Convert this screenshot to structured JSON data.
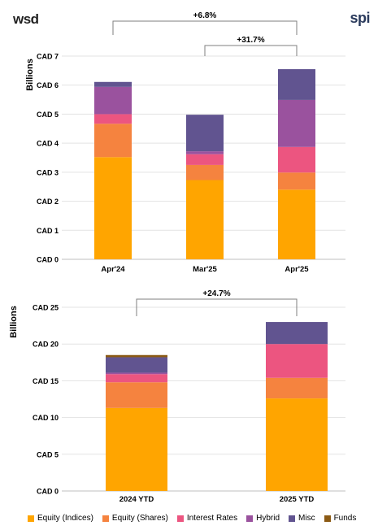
{
  "logos": {
    "left": "wsd",
    "right": "spi"
  },
  "chart_data": [
    {
      "type": "bar",
      "stacked": true,
      "ylabel": "Billions",
      "categories": [
        "Apr'24",
        "Mar'25",
        "Apr'25"
      ],
      "ylim": [
        0,
        7
      ],
      "ytick_labels": [
        "CAD 0",
        "CAD 1",
        "CAD 2",
        "CAD 3",
        "CAD 4",
        "CAD 5",
        "CAD 6",
        "CAD 7"
      ],
      "series": [
        {
          "name": "Equity (Indices)",
          "values": [
            3.52,
            2.73,
            2.4
          ]
        },
        {
          "name": "Equity (Shares)",
          "values": [
            1.15,
            0.52,
            0.59
          ]
        },
        {
          "name": "Interest Rates",
          "values": [
            0.33,
            0.37,
            0.88
          ]
        },
        {
          "name": "Hybrid",
          "values": [
            0.94,
            0.1,
            1.62
          ]
        },
        {
          "name": "Misc",
          "values": [
            0.17,
            1.26,
            1.06
          ]
        },
        {
          "name": "Funds",
          "values": [
            0,
            0,
            0
          ]
        }
      ],
      "brackets": [
        {
          "from": 0,
          "to": 2,
          "label": "+6.8%"
        },
        {
          "from": 1,
          "to": 2,
          "label": "+31.7%"
        }
      ]
    },
    {
      "type": "bar",
      "stacked": true,
      "ylabel": "Billions",
      "categories": [
        "2024 YTD",
        "2025 YTD"
      ],
      "ylim": [
        0,
        25
      ],
      "ytick_labels": [
        "CAD 0",
        "CAD 5",
        "CAD 10",
        "CAD 15",
        "CAD 20",
        "CAD 25"
      ],
      "series": [
        {
          "name": "Equity (Indices)",
          "values": [
            11.3,
            12.6
          ]
        },
        {
          "name": "Equity (Shares)",
          "values": [
            3.5,
            2.8
          ]
        },
        {
          "name": "Interest Rates",
          "values": [
            1.1,
            4.6
          ]
        },
        {
          "name": "Hybrid",
          "values": [
            0.2,
            0
          ]
        },
        {
          "name": "Misc",
          "values": [
            2.1,
            3.0
          ]
        },
        {
          "name": "Funds",
          "values": [
            0.3,
            0
          ]
        }
      ],
      "brackets": [
        {
          "from": 0,
          "to": 1,
          "label": "+24.7%"
        }
      ]
    }
  ],
  "legend": [
    {
      "name": "Equity (Indices)",
      "color": "#FFA500"
    },
    {
      "name": "Equity (Shares)",
      "color": "#F5833F"
    },
    {
      "name": "Interest Rates",
      "color": "#EC5580"
    },
    {
      "name": "Hybrid",
      "color": "#9A529E"
    },
    {
      "name": "Misc",
      "color": "#615490"
    },
    {
      "name": "Funds",
      "color": "#8B5A14"
    }
  ]
}
